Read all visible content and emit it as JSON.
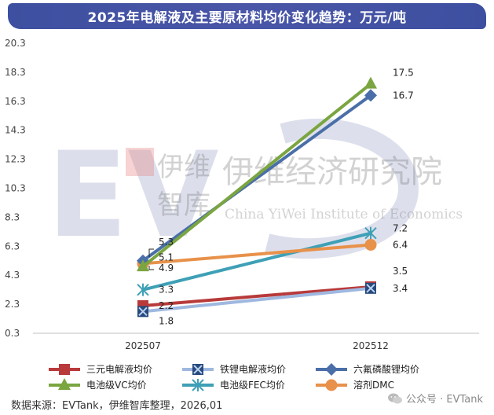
{
  "chart_data": {
    "type": "line",
    "title": "2025年电解液及主要原材料均价变化趋势：万元/吨",
    "categories": [
      "202507",
      "202512"
    ],
    "yticks": [
      "20.3",
      "18.3",
      "16.3",
      "14.3",
      "12.3",
      "10.3",
      "8.3",
      "6.3",
      "4.3",
      "2.3",
      "0.3"
    ],
    "ylim": [
      0.3,
      20.3
    ],
    "series": [
      {
        "name": "三元电解液均价",
        "color": "#b83a3a",
        "marker": "square",
        "values": [
          2.2,
          3.5
        ],
        "labels": [
          "2.2",
          "3.5"
        ]
      },
      {
        "name": "铁锂电解液均价",
        "color": "#9fb8e0",
        "marker": "xsquare",
        "values": [
          1.8,
          3.4
        ],
        "labels": [
          "1.8",
          "3.4"
        ]
      },
      {
        "name": "六氟磷酸锂均价",
        "color": "#4a6fa8",
        "marker": "diamond",
        "values": [
          5.3,
          16.7
        ],
        "labels": [
          "5.3",
          "16.7"
        ]
      },
      {
        "name": "电池级VC均价",
        "color": "#7aa540",
        "marker": "triangle",
        "values": [
          4.9,
          17.5
        ],
        "labels": [
          "4.9",
          "17.5"
        ]
      },
      {
        "name": "电池级FEC均价",
        "color": "#3ea0b6",
        "marker": "star",
        "values": [
          3.3,
          7.2
        ],
        "labels": [
          "3.3",
          "7.2"
        ]
      },
      {
        "name": "溶剂DMC",
        "color": "#e8914a",
        "marker": "circle",
        "values": [
          5.1,
          6.4
        ],
        "labels": [
          "5.1",
          "6.4"
        ]
      }
    ],
    "legend_position": "bottom",
    "watermark": {
      "cn": "伊维经济研究院",
      "en": "China YiWei Institute of Economics",
      "logo_top": "伊维",
      "logo_bottom": "智库"
    }
  },
  "footer": {
    "source": "数据来源：EVTank，伊维智库整理，2026,01",
    "wechat": "公众号 · EVTank"
  }
}
